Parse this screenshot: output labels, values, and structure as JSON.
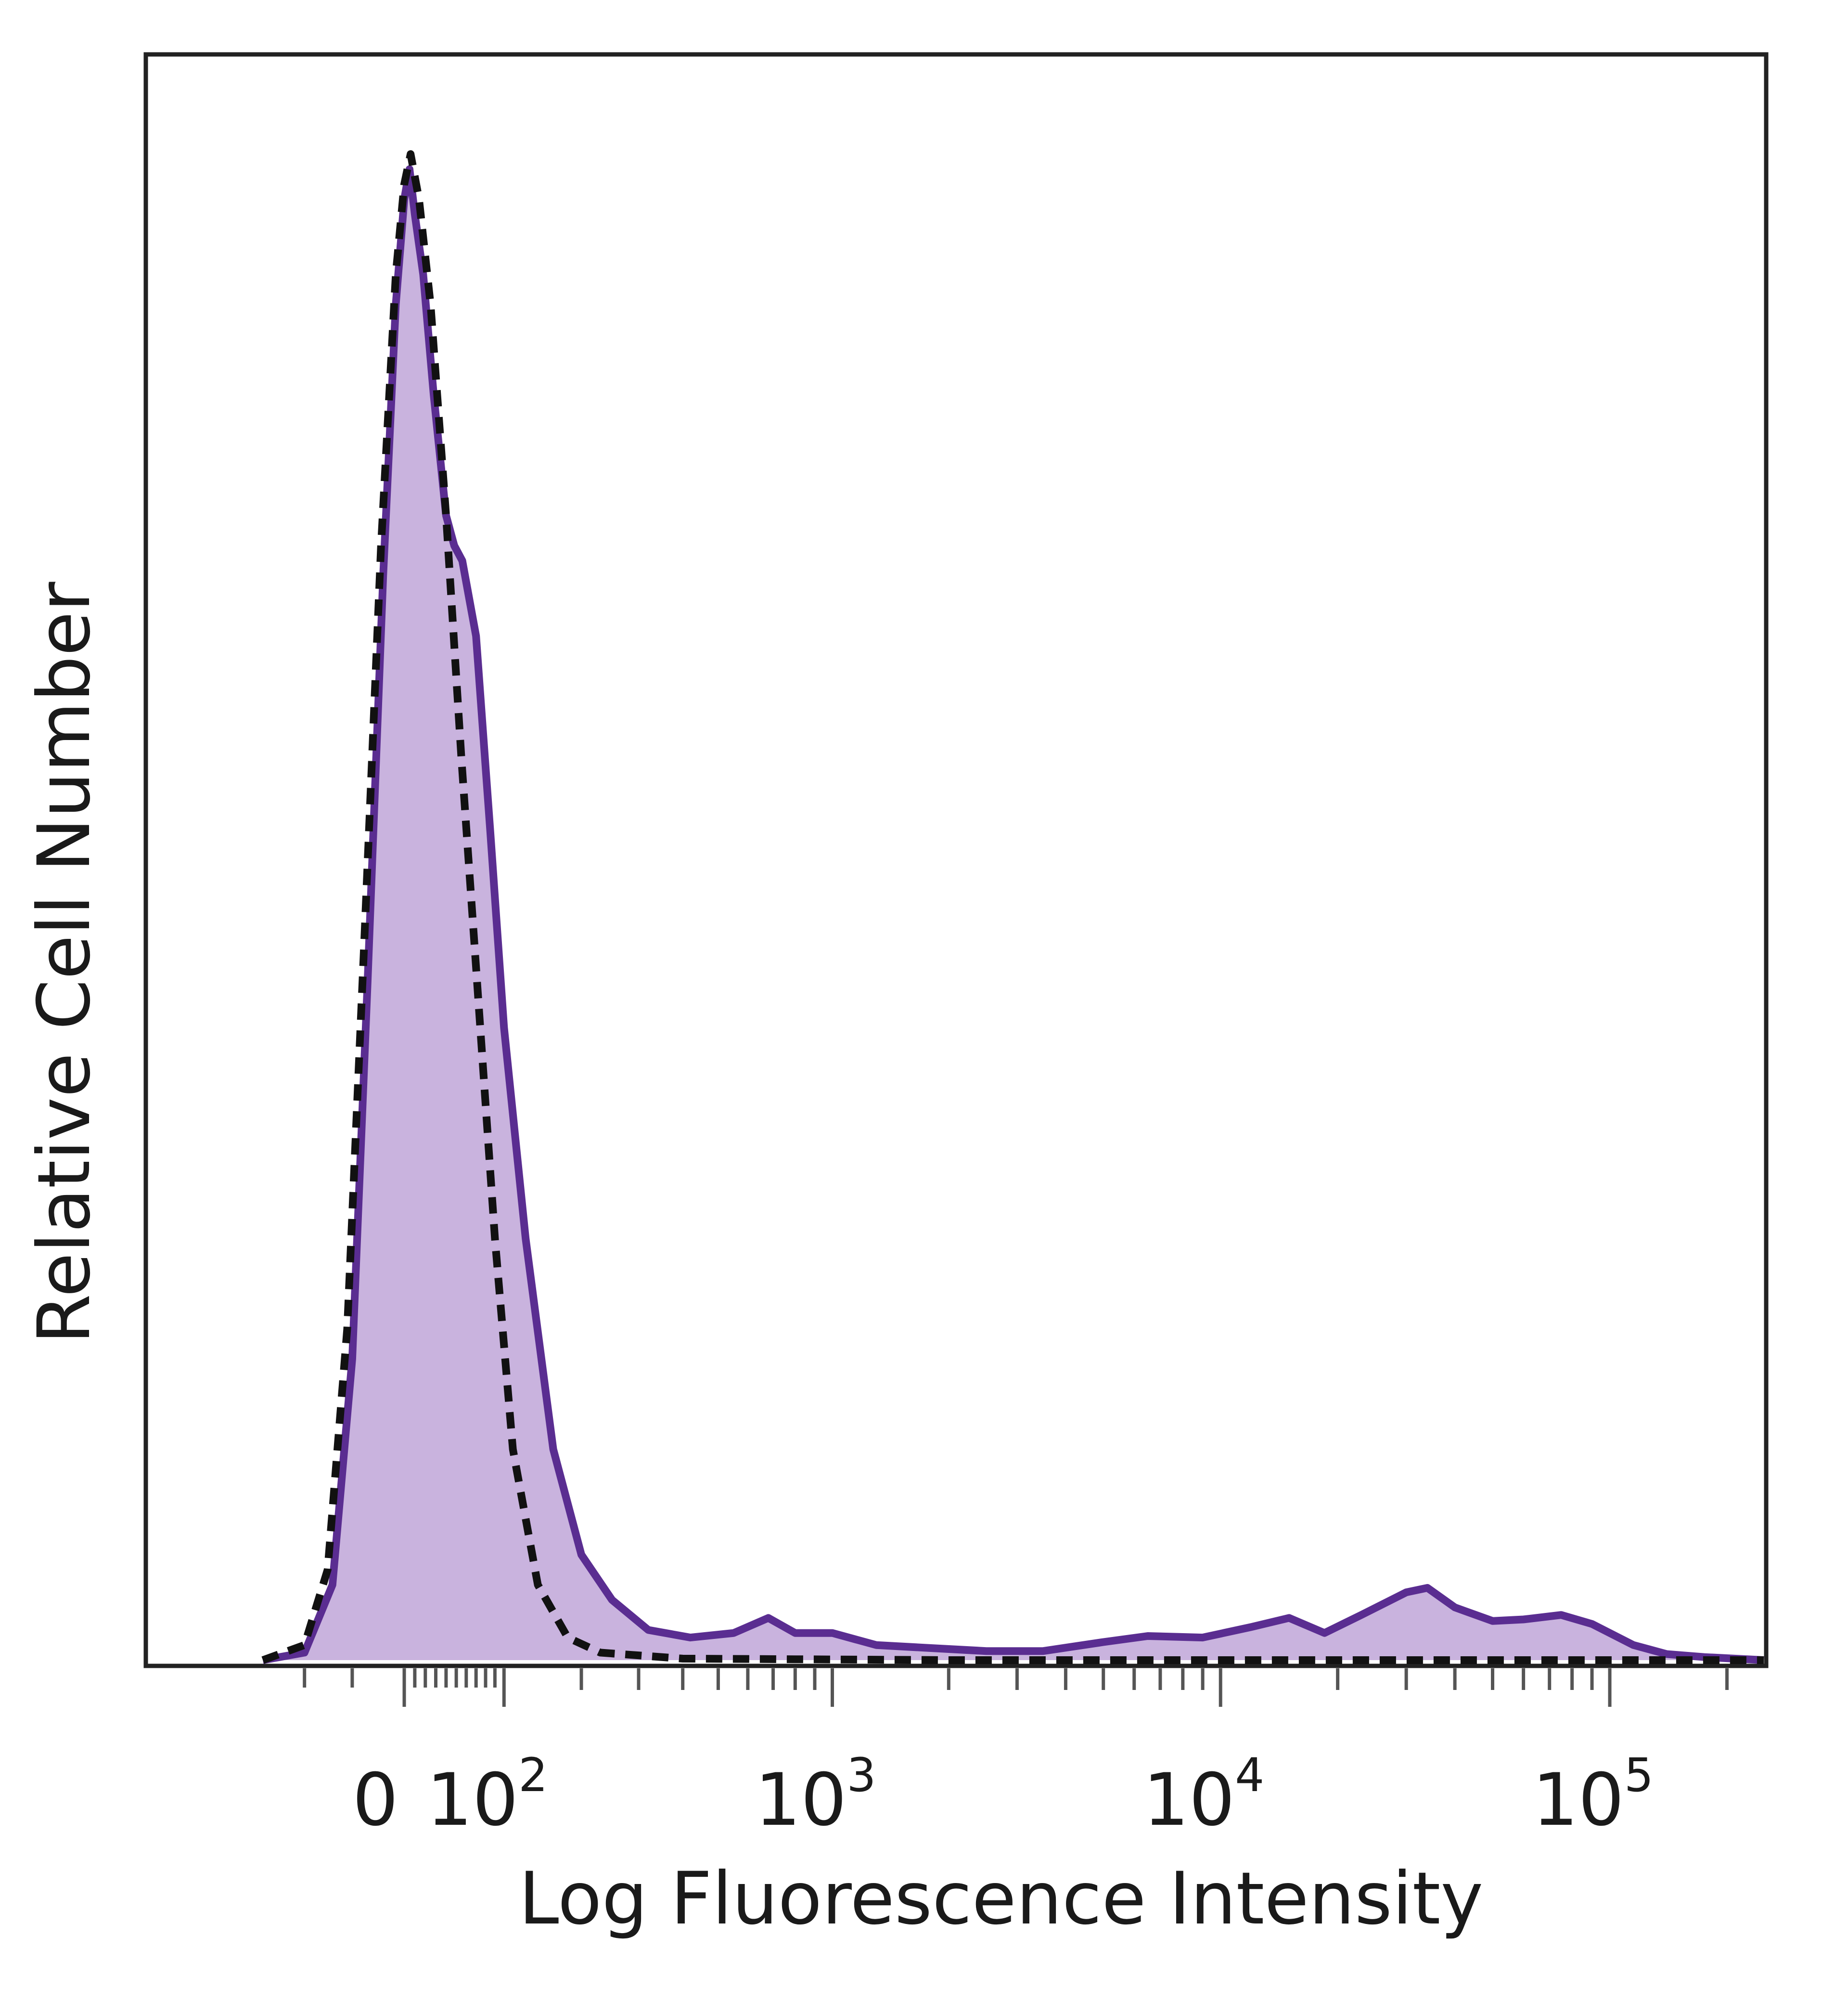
{
  "chart_data": {
    "type": "area",
    "xlabel": "Log Fluorescence Intensity",
    "ylabel": "Relative Cell Number",
    "x_scale": "biexponential",
    "x_ticks": [
      {
        "value": 0,
        "base": "0",
        "exp": ""
      },
      {
        "value": 100,
        "base": "10",
        "exp": "2"
      },
      {
        "value": 1000,
        "base": "10",
        "exp": "3"
      },
      {
        "value": 10000,
        "base": "10",
        "exp": "4"
      },
      {
        "value": 100000,
        "base": "10",
        "exp": "5"
      }
    ],
    "ylim": [
      0,
      100
    ],
    "grid": false,
    "series": [
      {
        "style": "filled-solid",
        "stroke_color": "#5a2d91",
        "fill_color": "#c9b3de",
        "points": [
          [
            -150,
            0
          ],
          [
            -100,
            0.5
          ],
          [
            -70,
            5
          ],
          [
            -50,
            20
          ],
          [
            -35,
            45
          ],
          [
            -20,
            72
          ],
          [
            -8,
            90
          ],
          [
            0,
            97
          ],
          [
            5,
            99
          ],
          [
            10,
            96
          ],
          [
            18,
            92
          ],
          [
            28,
            84
          ],
          [
            40,
            76
          ],
          [
            48,
            74
          ],
          [
            56,
            73
          ],
          [
            70,
            68
          ],
          [
            85,
            55
          ],
          [
            100,
            42
          ],
          [
            125,
            28
          ],
          [
            160,
            14
          ],
          [
            200,
            7
          ],
          [
            250,
            4
          ],
          [
            320,
            2
          ],
          [
            420,
            1.5
          ],
          [
            550,
            1.8
          ],
          [
            680,
            2.8
          ],
          [
            800,
            1.8
          ],
          [
            1000,
            1.8
          ],
          [
            1300,
            1.0
          ],
          [
            1800,
            0.8
          ],
          [
            2500,
            0.6
          ],
          [
            3500,
            0.6
          ],
          [
            5000,
            1.2
          ],
          [
            6500,
            1.6
          ],
          [
            9000,
            1.5
          ],
          [
            12000,
            2.2
          ],
          [
            15000,
            2.8
          ],
          [
            18500,
            1.8
          ],
          [
            23000,
            3.0
          ],
          [
            30000,
            4.5
          ],
          [
            34000,
            4.8
          ],
          [
            40000,
            3.5
          ],
          [
            50000,
            2.6
          ],
          [
            60000,
            2.7
          ],
          [
            75000,
            3.0
          ],
          [
            90000,
            2.4
          ],
          [
            115000,
            1.0
          ],
          [
            140000,
            0.4
          ],
          [
            175000,
            0.2
          ],
          [
            250000,
            0
          ]
        ]
      },
      {
        "style": "dashed",
        "stroke_color": "#111111",
        "points": [
          [
            -150,
            0
          ],
          [
            -100,
            1
          ],
          [
            -75,
            6
          ],
          [
            -55,
            22
          ],
          [
            -38,
            48
          ],
          [
            -22,
            74
          ],
          [
            -8,
            92
          ],
          [
            0,
            98
          ],
          [
            6,
            100
          ],
          [
            14,
            97
          ],
          [
            25,
            90
          ],
          [
            40,
            76
          ],
          [
            55,
            60
          ],
          [
            70,
            46
          ],
          [
            90,
            28
          ],
          [
            110,
            14
          ],
          [
            140,
            5
          ],
          [
            180,
            1.5
          ],
          [
            230,
            0.5
          ],
          [
            400,
            0.1
          ],
          [
            2000,
            0
          ],
          [
            250000,
            0
          ]
        ]
      }
    ]
  }
}
